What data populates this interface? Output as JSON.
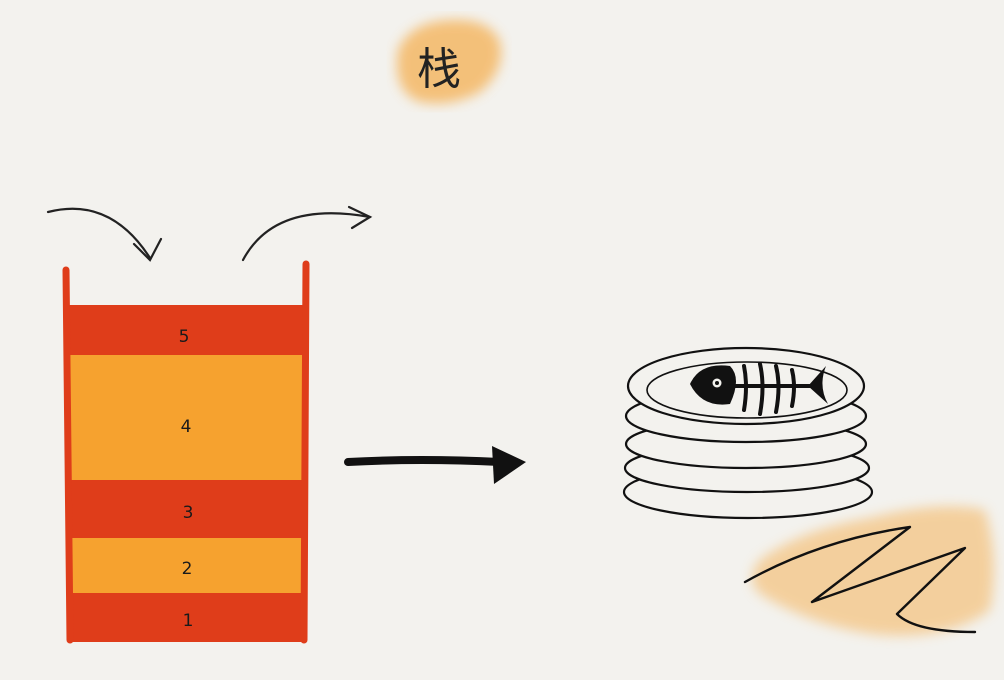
{
  "title": "栈",
  "stack": {
    "layers": [
      {
        "label": "1",
        "color": "#df3d1a"
      },
      {
        "label": "2",
        "color": "#f6a22f"
      },
      {
        "label": "3",
        "color": "#df3d1a"
      },
      {
        "label": "4",
        "color": "#f6a22f"
      },
      {
        "label": "5",
        "color": "#df3d1a"
      }
    ],
    "wall_color": "#df3d1a"
  },
  "colors": {
    "background": "#f3f2ee",
    "highlight": "#f4b45c",
    "ink": "#111111"
  },
  "icons": {
    "push_arrow": "curved-arrow-down-icon",
    "pop_arrow": "curved-arrow-up-icon",
    "relation_arrow": "right-arrow-icon",
    "plates": "stacked-plates-icon",
    "fish": "fish-bone-icon"
  }
}
